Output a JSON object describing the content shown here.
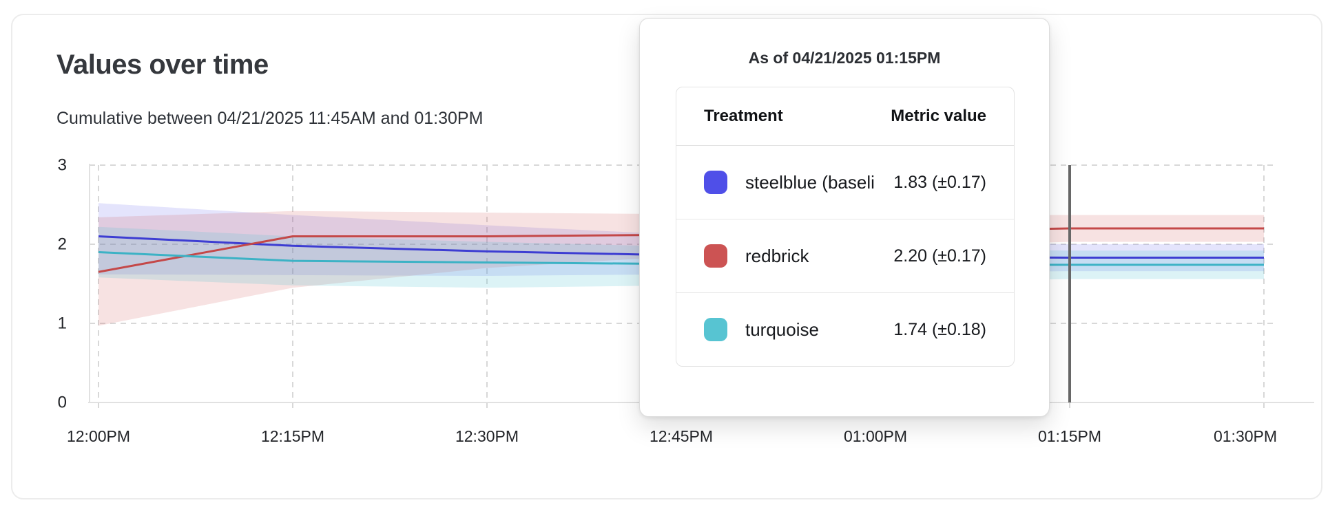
{
  "header": {
    "title": "Values over time",
    "subtitle": "Cumulative between 04/21/2025 11:45AM and 01:30PM"
  },
  "tooltip": {
    "title": "As of 04/21/2025 01:15PM",
    "columns": {
      "treatment": "Treatment",
      "metric": "Metric value"
    },
    "rows": [
      {
        "swatch_color": "#4f4fe8",
        "treatment": "steelblue  (baseli",
        "value": "1.83 (±0.17)"
      },
      {
        "swatch_color": "#cc5353",
        "treatment": "redbrick",
        "value": "2.20 (±0.17)"
      },
      {
        "swatch_color": "#57c4d2",
        "treatment": "turquoise",
        "value": "1.74 (±0.18)"
      }
    ]
  },
  "chart_data": {
    "type": "line",
    "title": "Values over time",
    "x_labels": [
      "12:00PM",
      "12:15PM",
      "12:30PM",
      "12:45PM",
      "01:00PM",
      "01:15PM",
      "01:30PM"
    ],
    "ylim": [
      0,
      3
    ],
    "yticks": [
      0,
      1,
      2,
      3
    ],
    "ytick_labels": [
      "0",
      "1",
      "2",
      "3"
    ],
    "grid": "dashed",
    "legend_position": "tooltip",
    "marker": {
      "x_label": "01:15PM",
      "tick_index": 5,
      "color": "#686868"
    },
    "series": [
      {
        "name": "steelblue  (baseli",
        "color": "#3d3dd2",
        "band_color": "rgba(88,88,235,0.16)",
        "values": [
          2.1,
          1.98,
          1.91,
          1.86,
          1.84,
          1.83,
          1.83
        ],
        "band_lo": [
          1.62,
          1.61,
          1.6,
          1.62,
          1.64,
          1.66,
          1.66
        ],
        "band_hi": [
          2.52,
          2.37,
          2.24,
          2.12,
          2.04,
          2.0,
          2.0
        ],
        "value_at_marker": "1.83 (±0.17)"
      },
      {
        "name": "redbrick",
        "color": "#c44848",
        "band_color": "rgba(205,85,85,0.17)",
        "values": [
          1.65,
          2.1,
          2.1,
          2.12,
          2.16,
          2.2,
          2.2
        ],
        "band_lo": [
          0.97,
          1.45,
          1.7,
          1.85,
          1.96,
          2.03,
          2.03
        ],
        "band_hi": [
          2.34,
          2.42,
          2.4,
          2.38,
          2.37,
          2.37,
          2.37
        ],
        "value_at_marker": "2.20 (±0.17)"
      },
      {
        "name": "turquoise",
        "color": "#3cb2c5",
        "band_color": "rgba(80,195,210,0.20)",
        "values": [
          1.9,
          1.79,
          1.77,
          1.75,
          1.74,
          1.74,
          1.74
        ],
        "band_lo": [
          1.58,
          1.48,
          1.45,
          1.48,
          1.52,
          1.56,
          1.56
        ],
        "band_hi": [
          2.22,
          2.1,
          2.03,
          1.97,
          1.94,
          1.92,
          1.92
        ],
        "value_at_marker": "1.74 (±0.18)"
      }
    ]
  }
}
